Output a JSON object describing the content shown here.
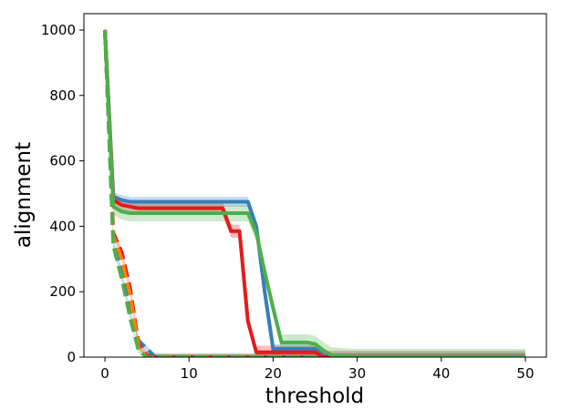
{
  "chart_data": {
    "type": "line",
    "title": "",
    "xlabel": "threshold",
    "ylabel": "alignment",
    "xlim": [
      -2.5,
      52.5
    ],
    "ylim": [
      0,
      1050
    ],
    "xticks": [
      0,
      10,
      20,
      30,
      40,
      50
    ],
    "yticks": [
      0,
      200,
      400,
      600,
      800,
      1000
    ],
    "grid": false,
    "legend": "none",
    "series": [
      {
        "color": "#377eb8",
        "style": "solid",
        "x": [
          0,
          1,
          2,
          3,
          4,
          5,
          10,
          14,
          15,
          16,
          17,
          18,
          19,
          20,
          25,
          26,
          27,
          30,
          50
        ],
        "y": [
          1000,
          490,
          480,
          475,
          475,
          475,
          475,
          475,
          475,
          475,
          475,
          400,
          200,
          25,
          25,
          5,
          0,
          0,
          0
        ],
        "band": 15
      },
      {
        "color": "#e41a1c",
        "style": "solid",
        "x": [
          0,
          1,
          2,
          3,
          4,
          10,
          14,
          15,
          16,
          17,
          18,
          25,
          26,
          30,
          50
        ],
        "y": [
          1000,
          480,
          465,
          460,
          455,
          455,
          455,
          385,
          385,
          110,
          15,
          15,
          0,
          0,
          0
        ],
        "band": 20
      },
      {
        "color": "#4daf4a",
        "style": "solid",
        "x": [
          0,
          1,
          2,
          3,
          4,
          10,
          14,
          17,
          18,
          19,
          20,
          21,
          24,
          25,
          26,
          27,
          30,
          50
        ],
        "y": [
          1000,
          460,
          445,
          440,
          440,
          440,
          440,
          440,
          380,
          260,
          150,
          45,
          45,
          40,
          20,
          5,
          0,
          0
        ],
        "band": 25
      },
      {
        "color": "#377eb8",
        "style": "dashed",
        "x": [
          0,
          1,
          2,
          3,
          4,
          5,
          6,
          10,
          50
        ],
        "y": [
          1000,
          350,
          260,
          140,
          50,
          25,
          0,
          0,
          0
        ],
        "band": 10
      },
      {
        "color": "#e41a1c",
        "style": "dashed",
        "x": [
          0,
          1,
          2,
          3,
          4,
          5,
          6,
          10,
          50
        ],
        "y": [
          1000,
          380,
          320,
          210,
          40,
          5,
          0,
          0,
          0
        ],
        "band": 10
      },
      {
        "color": "#ff7f00",
        "style": "dashed",
        "x": [
          0,
          1,
          2,
          3,
          4,
          5,
          10,
          50
        ],
        "y": [
          1000,
          370,
          300,
          190,
          30,
          0,
          0,
          0
        ],
        "band": 8
      },
      {
        "color": "#4daf4a",
        "style": "dashed",
        "x": [
          0,
          1,
          2,
          3,
          4,
          5,
          10,
          50
        ],
        "y": [
          1000,
          340,
          240,
          120,
          20,
          0,
          0,
          0
        ],
        "band": 10
      }
    ]
  }
}
